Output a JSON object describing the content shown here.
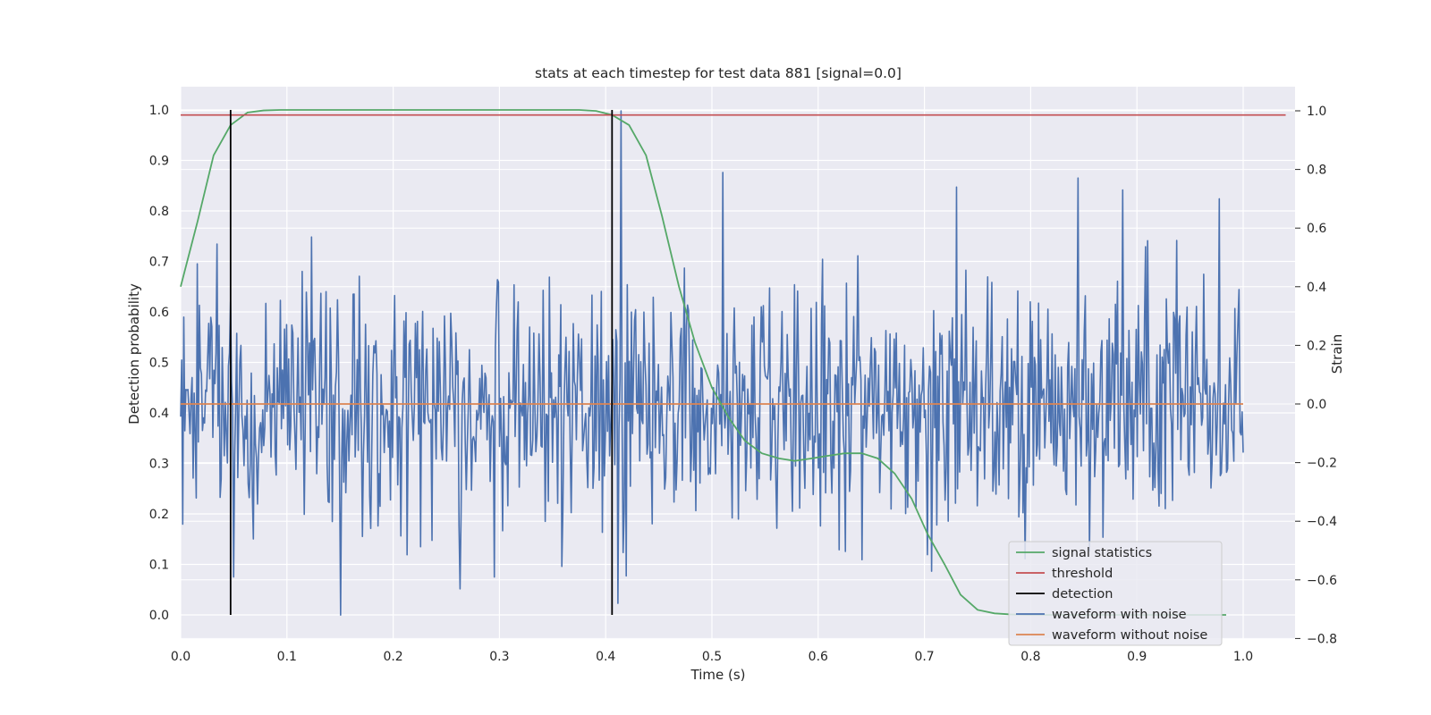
{
  "chart_data": {
    "type": "line",
    "title": "stats at each timestep for test data 881 [signal=0.0]",
    "xlabel": "Time (s)",
    "ylabel": "Detection probability",
    "ylabel_right": "Strain",
    "xlim": [
      0.0,
      1.05
    ],
    "ylim": [
      -0.048,
      1.05
    ],
    "ylim_right": [
      -0.8,
      1.08
    ],
    "x_ticks": [
      "0.0",
      "0.1",
      "0.2",
      "0.3",
      "0.4",
      "0.5",
      "0.6",
      "0.7",
      "0.8",
      "0.9",
      "1.0"
    ],
    "y_ticks": [
      "0.0",
      "0.1",
      "0.2",
      "0.3",
      "0.4",
      "0.5",
      "0.6",
      "0.7",
      "0.8",
      "0.9",
      "1.0"
    ],
    "y_ticks_right": [
      "−0.8",
      "−0.6",
      "−0.4",
      "−0.2",
      "0.0",
      "0.2",
      "0.4",
      "0.6",
      "0.8",
      "1.0"
    ],
    "grid": true,
    "background": "#eaeaf2",
    "legend_position": "lower-right",
    "series": [
      {
        "name": "signal statistics",
        "axis": "left",
        "color": "#55a868",
        "x": [
          0.0,
          0.016,
          0.031,
          0.047,
          0.063,
          0.078,
          0.094,
          0.109,
          0.125,
          0.14,
          0.156,
          0.172,
          0.188,
          0.203,
          0.219,
          0.234,
          0.25,
          0.266,
          0.281,
          0.297,
          0.313,
          0.328,
          0.344,
          0.359,
          0.375,
          0.391,
          0.406,
          0.422,
          0.438,
          0.453,
          0.469,
          0.484,
          0.5,
          0.516,
          0.531,
          0.547,
          0.563,
          0.578,
          0.594,
          0.609,
          0.625,
          0.641,
          0.656,
          0.672,
          0.688,
          0.703,
          0.719,
          0.734,
          0.75,
          0.766,
          0.781,
          0.797,
          0.813,
          0.828,
          0.844,
          0.859,
          0.875,
          0.891,
          0.906,
          0.922,
          0.938,
          0.953,
          0.969,
          0.984
        ],
        "y": [
          0.65,
          0.78,
          0.91,
          0.97,
          0.995,
          0.999,
          1.0,
          1.0,
          1.0,
          1.0,
          1.0,
          1.0,
          1.0,
          1.0,
          1.0,
          1.0,
          1.0,
          1.0,
          1.0,
          1.0,
          1.0,
          1.0,
          1.0,
          1.0,
          1.0,
          0.998,
          0.99,
          0.97,
          0.91,
          0.79,
          0.65,
          0.54,
          0.45,
          0.39,
          0.345,
          0.32,
          0.31,
          0.305,
          0.31,
          0.315,
          0.32,
          0.32,
          0.31,
          0.28,
          0.23,
          0.16,
          0.1,
          0.04,
          0.01,
          0.003,
          0.001,
          0.0,
          0.0,
          0.0,
          0.0,
          0.0,
          0.0,
          0.0,
          0.0,
          0.0,
          0.0,
          0.0,
          0.0,
          0.0
        ]
      },
      {
        "name": "threshold",
        "axis": "left",
        "color": "#c44e52",
        "x": [
          0.0,
          1.04
        ],
        "y": [
          0.99,
          0.99
        ]
      },
      {
        "name": "detection",
        "axis": "left",
        "color": "#000000",
        "segments": [
          {
            "x": 0.047,
            "y0": 0.0,
            "y1": 1.0
          },
          {
            "x": 0.406,
            "y0": 0.0,
            "y1": 1.0
          }
        ]
      },
      {
        "name": "waveform with noise",
        "axis": "right",
        "color": "#4c72b0",
        "x_range": [
          0.0,
          1.0
        ],
        "n_points": 1024,
        "mean": 0.0,
        "std": 0.2,
        "y_min": -0.72,
        "y_max": 1.0,
        "extremes": [
          {
            "x": 0.414,
            "y": 1.0
          },
          {
            "x": 0.412,
            "y": -0.68
          },
          {
            "x": 0.151,
            "y": -0.72
          },
          {
            "x": 0.51,
            "y": 0.79
          },
          {
            "x": 0.73,
            "y": 0.74
          },
          {
            "x": 0.978,
            "y": 0.7
          },
          {
            "x": 0.887,
            "y": 0.73
          },
          {
            "x": 0.05,
            "y": -0.59
          }
        ]
      },
      {
        "name": "waveform without noise",
        "axis": "right",
        "color": "#dd8452",
        "x": [
          0.0,
          1.0
        ],
        "y": [
          0.0,
          0.0
        ]
      }
    ]
  }
}
